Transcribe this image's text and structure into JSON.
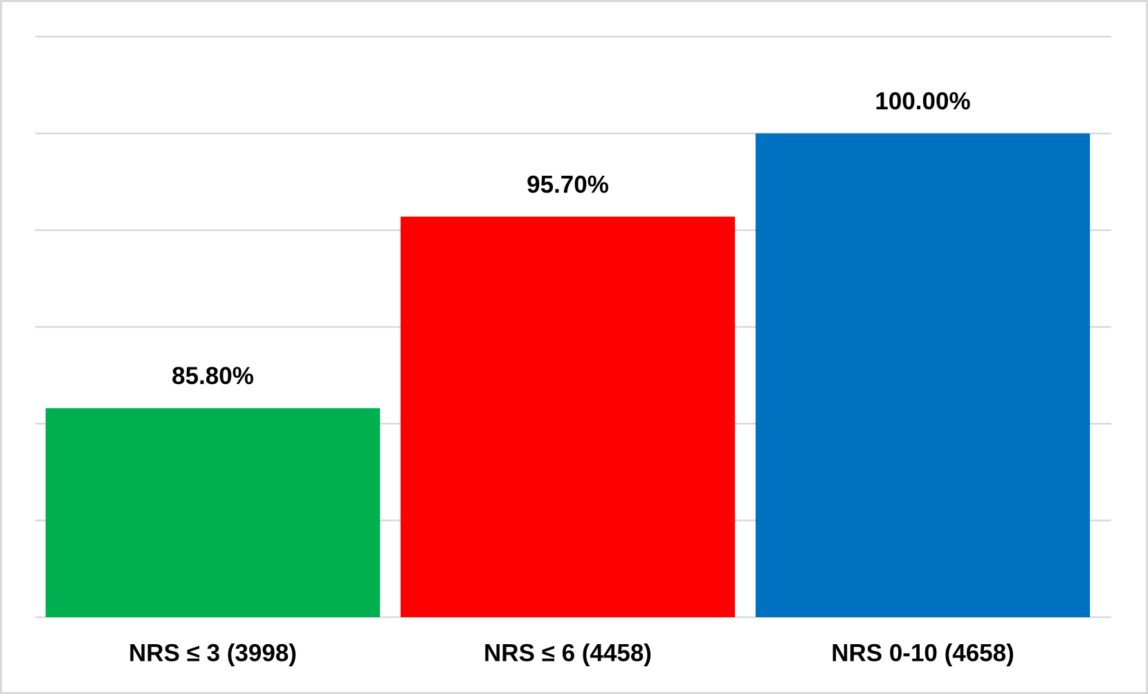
{
  "chart_data": {
    "type": "bar",
    "categories": [
      "NRS ≤ 3 (3998)",
      "NRS ≤ 6 (4458)",
      "NRS 0-10 (4658)"
    ],
    "values": [
      85.8,
      95.7,
      100
    ],
    "value_labels": [
      "85.80%",
      "95.70%",
      "100.00%"
    ],
    "colors": [
      "#00b050",
      "#ff0000",
      "#0070c0"
    ],
    "ylim": [
      75,
      105
    ],
    "yticks": [
      75,
      80,
      85,
      90,
      95,
      100,
      105
    ],
    "grid": true
  }
}
